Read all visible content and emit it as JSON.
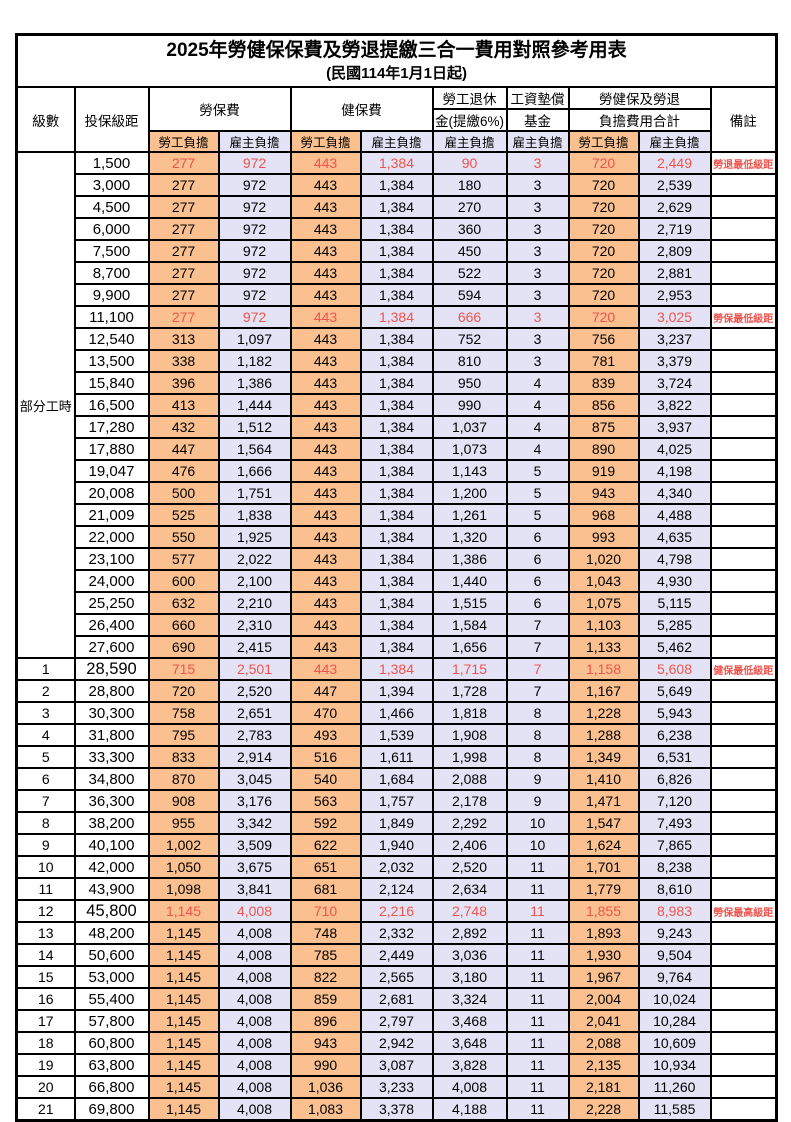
{
  "title": "2025年勞健保保費及勞退提繳三合一費用對照參考用表",
  "subtitle": "(民國114年1月1日起)",
  "header": {
    "level": "級數",
    "bracket": "投保級距",
    "labor_insurance": "勞保費",
    "health_insurance": "健保費",
    "pension_line1": "勞工退休",
    "pension_line2": "金(提繳6%)",
    "wage_fund_line1": "工資墊償",
    "wage_fund_line2": "基金",
    "total_line1": "勞健保及勞退",
    "total_line2": "負擔費用合計",
    "remark": "備註",
    "employee": "勞工負擔",
    "employer": "雇主負擔"
  },
  "part_time_label": "部分工時",
  "colors": {
    "employee_bg": "#fac08f",
    "employer_bg": "#e4e3f5",
    "red_text": "#ee544d",
    "border": "#000000"
  },
  "rows": [
    {
      "level": "",
      "bracket": "1,500",
      "values": [
        "277",
        "972",
        "443",
        "1,384",
        "90",
        "3",
        "720",
        "2,449"
      ],
      "remark": "勞退最低級距",
      "red": true
    },
    {
      "level": "",
      "bracket": "3,000",
      "values": [
        "277",
        "972",
        "443",
        "1,384",
        "180",
        "3",
        "720",
        "2,539"
      ],
      "remark": ""
    },
    {
      "level": "",
      "bracket": "4,500",
      "values": [
        "277",
        "972",
        "443",
        "1,384",
        "270",
        "3",
        "720",
        "2,629"
      ],
      "remark": ""
    },
    {
      "level": "",
      "bracket": "6,000",
      "values": [
        "277",
        "972",
        "443",
        "1,384",
        "360",
        "3",
        "720",
        "2,719"
      ],
      "remark": ""
    },
    {
      "level": "",
      "bracket": "7,500",
      "values": [
        "277",
        "972",
        "443",
        "1,384",
        "450",
        "3",
        "720",
        "2,809"
      ],
      "remark": ""
    },
    {
      "level": "",
      "bracket": "8,700",
      "values": [
        "277",
        "972",
        "443",
        "1,384",
        "522",
        "3",
        "720",
        "2,881"
      ],
      "remark": ""
    },
    {
      "level": "",
      "bracket": "9,900",
      "values": [
        "277",
        "972",
        "443",
        "1,384",
        "594",
        "3",
        "720",
        "2,953"
      ],
      "remark": ""
    },
    {
      "level": "",
      "bracket": "11,100",
      "values": [
        "277",
        "972",
        "443",
        "1,384",
        "666",
        "3",
        "720",
        "3,025"
      ],
      "remark": "勞保最低級距",
      "red": true
    },
    {
      "level": "",
      "bracket": "12,540",
      "values": [
        "313",
        "1,097",
        "443",
        "1,384",
        "752",
        "3",
        "756",
        "3,237"
      ],
      "remark": ""
    },
    {
      "level": "",
      "bracket": "13,500",
      "values": [
        "338",
        "1,182",
        "443",
        "1,384",
        "810",
        "3",
        "781",
        "3,379"
      ],
      "remark": ""
    },
    {
      "level": "",
      "bracket": "15,840",
      "values": [
        "396",
        "1,386",
        "443",
        "1,384",
        "950",
        "4",
        "839",
        "3,724"
      ],
      "remark": ""
    },
    {
      "level": "",
      "bracket": "16,500",
      "values": [
        "413",
        "1,444",
        "443",
        "1,384",
        "990",
        "4",
        "856",
        "3,822"
      ],
      "remark": ""
    },
    {
      "level": "",
      "bracket": "17,280",
      "values": [
        "432",
        "1,512",
        "443",
        "1,384",
        "1,037",
        "4",
        "875",
        "3,937"
      ],
      "remark": ""
    },
    {
      "level": "",
      "bracket": "17,880",
      "values": [
        "447",
        "1,564",
        "443",
        "1,384",
        "1,073",
        "4",
        "890",
        "4,025"
      ],
      "remark": ""
    },
    {
      "level": "",
      "bracket": "19,047",
      "values": [
        "476",
        "1,666",
        "443",
        "1,384",
        "1,143",
        "5",
        "919",
        "4,198"
      ],
      "remark": ""
    },
    {
      "level": "",
      "bracket": "20,008",
      "values": [
        "500",
        "1,751",
        "443",
        "1,384",
        "1,200",
        "5",
        "943",
        "4,340"
      ],
      "remark": ""
    },
    {
      "level": "",
      "bracket": "21,009",
      "values": [
        "525",
        "1,838",
        "443",
        "1,384",
        "1,261",
        "5",
        "968",
        "4,488"
      ],
      "remark": ""
    },
    {
      "level": "",
      "bracket": "22,000",
      "values": [
        "550",
        "1,925",
        "443",
        "1,384",
        "1,320",
        "6",
        "993",
        "4,635"
      ],
      "remark": ""
    },
    {
      "level": "",
      "bracket": "23,100",
      "values": [
        "577",
        "2,022",
        "443",
        "1,384",
        "1,386",
        "6",
        "1,020",
        "4,798"
      ],
      "remark": ""
    },
    {
      "level": "",
      "bracket": "24,000",
      "values": [
        "600",
        "2,100",
        "443",
        "1,384",
        "1,440",
        "6",
        "1,043",
        "4,930"
      ],
      "remark": ""
    },
    {
      "level": "",
      "bracket": "25,250",
      "values": [
        "632",
        "2,210",
        "443",
        "1,384",
        "1,515",
        "6",
        "1,075",
        "5,115"
      ],
      "remark": ""
    },
    {
      "level": "",
      "bracket": "26,400",
      "values": [
        "660",
        "2,310",
        "443",
        "1,384",
        "1,584",
        "7",
        "1,103",
        "5,285"
      ],
      "remark": ""
    },
    {
      "level": "",
      "bracket": "27,600",
      "values": [
        "690",
        "2,415",
        "443",
        "1,384",
        "1,656",
        "7",
        "1,133",
        "5,462"
      ],
      "remark": ""
    },
    {
      "level": "1",
      "bracket": "28,590",
      "values": [
        "715",
        "2,501",
        "443",
        "1,384",
        "1,715",
        "7",
        "1,158",
        "5,608"
      ],
      "remark": "健保最低級距",
      "red": true,
      "key": true
    },
    {
      "level": "2",
      "bracket": "28,800",
      "values": [
        "720",
        "2,520",
        "447",
        "1,394",
        "1,728",
        "7",
        "1,167",
        "5,649"
      ],
      "remark": ""
    },
    {
      "level": "3",
      "bracket": "30,300",
      "values": [
        "758",
        "2,651",
        "470",
        "1,466",
        "1,818",
        "8",
        "1,228",
        "5,943"
      ],
      "remark": ""
    },
    {
      "level": "4",
      "bracket": "31,800",
      "values": [
        "795",
        "2,783",
        "493",
        "1,539",
        "1,908",
        "8",
        "1,288",
        "6,238"
      ],
      "remark": ""
    },
    {
      "level": "5",
      "bracket": "33,300",
      "values": [
        "833",
        "2,914",
        "516",
        "1,611",
        "1,998",
        "8",
        "1,349",
        "6,531"
      ],
      "remark": ""
    },
    {
      "level": "6",
      "bracket": "34,800",
      "values": [
        "870",
        "3,045",
        "540",
        "1,684",
        "2,088",
        "9",
        "1,410",
        "6,826"
      ],
      "remark": ""
    },
    {
      "level": "7",
      "bracket": "36,300",
      "values": [
        "908",
        "3,176",
        "563",
        "1,757",
        "2,178",
        "9",
        "1,471",
        "7,120"
      ],
      "remark": ""
    },
    {
      "level": "8",
      "bracket": "38,200",
      "values": [
        "955",
        "3,342",
        "592",
        "1,849",
        "2,292",
        "10",
        "1,547",
        "7,493"
      ],
      "remark": ""
    },
    {
      "level": "9",
      "bracket": "40,100",
      "values": [
        "1,002",
        "3,509",
        "622",
        "1,940",
        "2,406",
        "10",
        "1,624",
        "7,865"
      ],
      "remark": ""
    },
    {
      "level": "10",
      "bracket": "42,000",
      "values": [
        "1,050",
        "3,675",
        "651",
        "2,032",
        "2,520",
        "11",
        "1,701",
        "8,238"
      ],
      "remark": ""
    },
    {
      "level": "11",
      "bracket": "43,900",
      "values": [
        "1,098",
        "3,841",
        "681",
        "2,124",
        "2,634",
        "11",
        "1,779",
        "8,610"
      ],
      "remark": ""
    },
    {
      "level": "12",
      "bracket": "45,800",
      "values": [
        "1,145",
        "4,008",
        "710",
        "2,216",
        "2,748",
        "11",
        "1,855",
        "8,983"
      ],
      "remark": "勞保最高級距",
      "red": true,
      "key": true
    },
    {
      "level": "13",
      "bracket": "48,200",
      "values": [
        "1,145",
        "4,008",
        "748",
        "2,332",
        "2,892",
        "11",
        "1,893",
        "9,243"
      ],
      "remark": ""
    },
    {
      "level": "14",
      "bracket": "50,600",
      "values": [
        "1,145",
        "4,008",
        "785",
        "2,449",
        "3,036",
        "11",
        "1,930",
        "9,504"
      ],
      "remark": ""
    },
    {
      "level": "15",
      "bracket": "53,000",
      "values": [
        "1,145",
        "4,008",
        "822",
        "2,565",
        "3,180",
        "11",
        "1,967",
        "9,764"
      ],
      "remark": ""
    },
    {
      "level": "16",
      "bracket": "55,400",
      "values": [
        "1,145",
        "4,008",
        "859",
        "2,681",
        "3,324",
        "11",
        "2,004",
        "10,024"
      ],
      "remark": ""
    },
    {
      "level": "17",
      "bracket": "57,800",
      "values": [
        "1,145",
        "4,008",
        "896",
        "2,797",
        "3,468",
        "11",
        "2,041",
        "10,284"
      ],
      "remark": ""
    },
    {
      "level": "18",
      "bracket": "60,800",
      "values": [
        "1,145",
        "4,008",
        "943",
        "2,942",
        "3,648",
        "11",
        "2,088",
        "10,609"
      ],
      "remark": ""
    },
    {
      "level": "19",
      "bracket": "63,800",
      "values": [
        "1,145",
        "4,008",
        "990",
        "3,087",
        "3,828",
        "11",
        "2,135",
        "10,934"
      ],
      "remark": ""
    },
    {
      "level": "20",
      "bracket": "66,800",
      "values": [
        "1,145",
        "4,008",
        "1,036",
        "3,233",
        "4,008",
        "11",
        "2,181",
        "11,260"
      ],
      "remark": ""
    },
    {
      "level": "21",
      "bracket": "69,800",
      "values": [
        "1,145",
        "4,008",
        "1,083",
        "3,378",
        "4,188",
        "11",
        "2,228",
        "11,585"
      ],
      "remark": ""
    }
  ]
}
